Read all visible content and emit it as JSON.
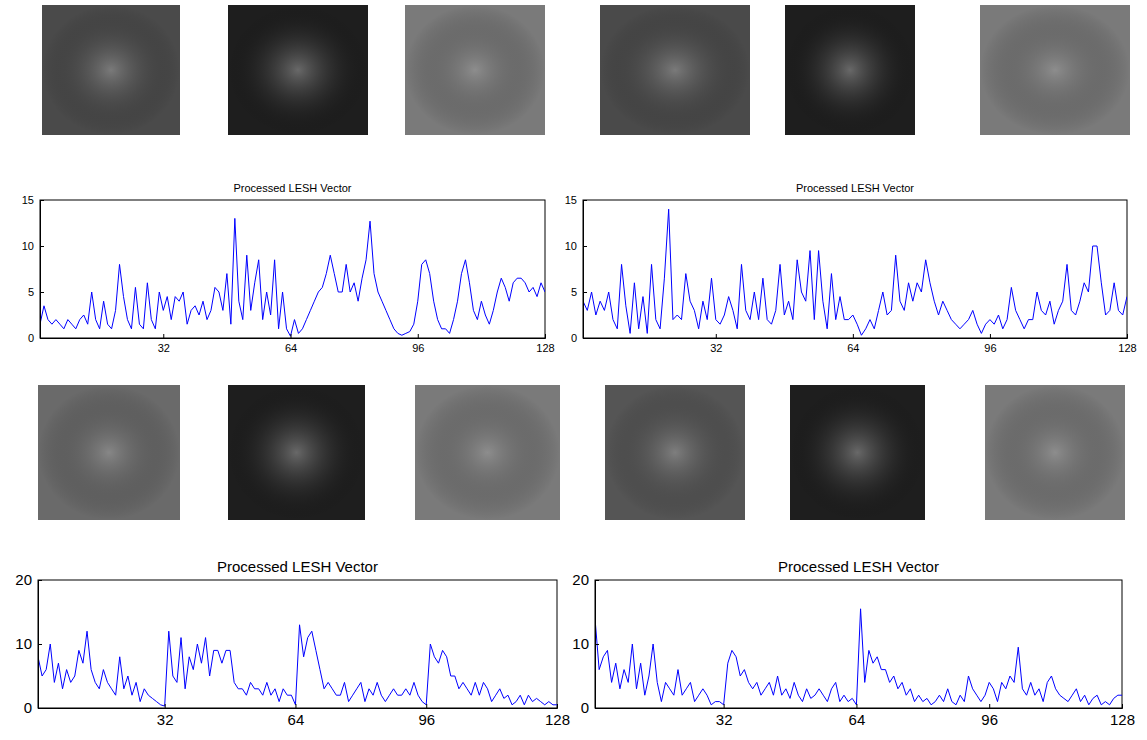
{
  "chart_data": [
    {
      "type": "line",
      "title": "Processed LESH Vector",
      "color": "#0000ff",
      "x": [
        1,
        2,
        3,
        4,
        5,
        6,
        7,
        8,
        9,
        10,
        11,
        12,
        13,
        14,
        15,
        16,
        17,
        18,
        19,
        20,
        21,
        22,
        23,
        24,
        25,
        26,
        27,
        28,
        29,
        30,
        31,
        32,
        33,
        34,
        35,
        36,
        37,
        38,
        39,
        40,
        41,
        42,
        43,
        44,
        45,
        46,
        47,
        48,
        49,
        50,
        51,
        52,
        53,
        54,
        55,
        56,
        57,
        58,
        59,
        60,
        61,
        62,
        63,
        64,
        65,
        66,
        67,
        68,
        69,
        70,
        71,
        72,
        73,
        74,
        75,
        76,
        77,
        78,
        79,
        80,
        81,
        82,
        83,
        84,
        85,
        86,
        87,
        88,
        89,
        90,
        91,
        92,
        93,
        94,
        95,
        96,
        97,
        98,
        99,
        100,
        101,
        102,
        103,
        104,
        105,
        106,
        107,
        108,
        109,
        110,
        111,
        112,
        113,
        114,
        115,
        116,
        117,
        118,
        119,
        120,
        121,
        122,
        123,
        124,
        125,
        126,
        127,
        128
      ],
      "values": [
        1.5,
        3.5,
        2,
        1.5,
        2,
        1.5,
        1,
        2,
        1.5,
        1,
        2,
        2.5,
        1.5,
        5,
        2,
        1,
        4,
        1.5,
        1,
        3,
        8,
        4.5,
        2,
        1,
        5.5,
        1.5,
        1,
        6,
        2,
        1,
        5,
        3,
        4.5,
        2,
        4.5,
        4,
        5,
        1.5,
        3,
        3.5,
        2.5,
        4,
        2,
        3,
        5.5,
        5,
        3,
        7,
        1.5,
        13,
        4,
        2,
        9,
        3,
        6,
        8.5,
        2,
        5,
        2.5,
        8.5,
        1,
        5,
        1,
        0.2,
        2,
        0.5,
        1,
        2,
        3,
        4,
        5,
        5.5,
        7,
        9,
        7,
        5,
        5,
        8,
        5,
        6,
        4,
        6.5,
        8.5,
        12.7,
        7,
        5,
        4,
        3,
        2,
        1,
        0.5,
        0.3,
        0.5,
        0.7,
        1.5,
        4,
        8,
        8.5,
        7,
        4,
        2,
        1,
        1,
        0.5,
        2,
        4,
        7,
        8.5,
        6,
        3,
        2,
        4,
        2.5,
        1.5,
        3,
        5,
        6.5,
        5.5,
        4,
        6,
        6.5,
        6.5,
        6,
        5,
        5.5,
        4.5,
        6,
        5
      ],
      "xlim": [
        1,
        128
      ],
      "xticks": [
        32,
        64,
        96,
        128
      ],
      "ylim": [
        0,
        15
      ],
      "yticks": [
        0,
        5,
        10,
        15
      ],
      "grid": false
    },
    {
      "type": "line",
      "title": "Processed LESH Vector",
      "color": "#0000ff",
      "x": [
        1,
        2,
        3,
        4,
        5,
        6,
        7,
        8,
        9,
        10,
        11,
        12,
        13,
        14,
        15,
        16,
        17,
        18,
        19,
        20,
        21,
        22,
        23,
        24,
        25,
        26,
        27,
        28,
        29,
        30,
        31,
        32,
        33,
        34,
        35,
        36,
        37,
        38,
        39,
        40,
        41,
        42,
        43,
        44,
        45,
        46,
        47,
        48,
        49,
        50,
        51,
        52,
        53,
        54,
        55,
        56,
        57,
        58,
        59,
        60,
        61,
        62,
        63,
        64,
        65,
        66,
        67,
        68,
        69,
        70,
        71,
        72,
        73,
        74,
        75,
        76,
        77,
        78,
        79,
        80,
        81,
        82,
        83,
        84,
        85,
        86,
        87,
        88,
        89,
        90,
        91,
        92,
        93,
        94,
        95,
        96,
        97,
        98,
        99,
        100,
        101,
        102,
        103,
        104,
        105,
        106,
        107,
        108,
        109,
        110,
        111,
        112,
        113,
        114,
        115,
        116,
        117,
        118,
        119,
        120,
        121,
        122,
        123,
        124,
        125,
        126,
        127,
        128
      ],
      "values": [
        4,
        3,
        5,
        2.5,
        4,
        3,
        5,
        2,
        1,
        8,
        3.5,
        0.5,
        6,
        1,
        4.5,
        0.5,
        8,
        2,
        1,
        6.5,
        14,
        2,
        2.5,
        2,
        7,
        4,
        3,
        1,
        4,
        2,
        6.5,
        2,
        1.5,
        2.5,
        4.5,
        3,
        1,
        8,
        3,
        2,
        5,
        2,
        6.5,
        2,
        1.5,
        3,
        8,
        2.5,
        4,
        2,
        8.5,
        5,
        4,
        9.5,
        2,
        9.5,
        4,
        1,
        7,
        2,
        4.5,
        2,
        2,
        2.5,
        1.5,
        0.3,
        1,
        2,
        1,
        3,
        5,
        2.5,
        3,
        9,
        4,
        3,
        6,
        4,
        6,
        5,
        8.5,
        6,
        4,
        2.5,
        4,
        3,
        2,
        1.5,
        1,
        1.5,
        2,
        3,
        1.5,
        0.5,
        1.5,
        2,
        1.5,
        2.5,
        1,
        2,
        5.5,
        3,
        2,
        1,
        2,
        2,
        5,
        3,
        2.5,
        4,
        1.5,
        3,
        4,
        8,
        3,
        2.5,
        4,
        6,
        5,
        10,
        10,
        6,
        2.5,
        3,
        6,
        3,
        2.5,
        4.5
      ],
      "xlim": [
        1,
        128
      ],
      "xticks": [
        32,
        64,
        96,
        128
      ],
      "ylim": [
        0,
        15
      ],
      "yticks": [
        0,
        5,
        10,
        15
      ],
      "grid": false
    },
    {
      "type": "line",
      "title": "Processed LESH Vector",
      "color": "#0000ff",
      "x": [
        1,
        2,
        3,
        4,
        5,
        6,
        7,
        8,
        9,
        10,
        11,
        12,
        13,
        14,
        15,
        16,
        17,
        18,
        19,
        20,
        21,
        22,
        23,
        24,
        25,
        26,
        27,
        28,
        29,
        30,
        31,
        32,
        33,
        34,
        35,
        36,
        37,
        38,
        39,
        40,
        41,
        42,
        43,
        44,
        45,
        46,
        47,
        48,
        49,
        50,
        51,
        52,
        53,
        54,
        55,
        56,
        57,
        58,
        59,
        60,
        61,
        62,
        63,
        64,
        65,
        66,
        67,
        68,
        69,
        70,
        71,
        72,
        73,
        74,
        75,
        76,
        77,
        78,
        79,
        80,
        81,
        82,
        83,
        84,
        85,
        86,
        87,
        88,
        89,
        90,
        91,
        92,
        93,
        94,
        95,
        96,
        97,
        98,
        99,
        100,
        101,
        102,
        103,
        104,
        105,
        106,
        107,
        108,
        109,
        110,
        111,
        112,
        113,
        114,
        115,
        116,
        117,
        118,
        119,
        120,
        121,
        122,
        123,
        124,
        125,
        126,
        127,
        128
      ],
      "values": [
        8,
        5,
        6,
        10,
        4,
        7,
        3,
        6,
        4,
        5,
        9,
        7,
        12,
        6,
        4,
        3,
        6,
        4,
        3,
        2,
        8,
        3,
        5,
        2,
        4,
        1,
        3,
        2,
        1.5,
        1,
        0.5,
        0.3,
        12,
        5,
        4,
        11,
        3,
        8,
        6,
        10,
        7,
        11,
        5,
        9,
        9,
        7,
        9,
        9,
        4,
        3,
        3,
        2,
        4,
        3,
        3,
        2,
        4,
        2,
        3,
        1,
        3,
        2,
        2,
        0.5,
        13,
        8,
        11,
        12,
        9,
        6,
        3,
        4,
        3,
        2,
        2,
        4,
        1,
        2,
        3,
        4,
        1,
        3,
        2,
        4,
        2,
        1,
        2,
        3,
        2,
        2,
        3,
        2,
        4,
        2,
        1,
        0.5,
        10,
        8,
        7,
        9,
        8,
        5,
        5,
        3,
        4,
        3,
        2,
        4,
        2,
        4,
        3,
        1,
        2,
        3,
        1.5,
        2,
        0.5,
        1,
        2,
        0.5,
        2,
        1,
        1.5,
        1,
        0.5,
        1,
        0.5,
        0.5
      ],
      "xlim": [
        1,
        128
      ],
      "xticks": [
        32,
        64,
        96,
        128
      ],
      "ylim": [
        0,
        20
      ],
      "yticks": [
        0,
        10,
        20
      ],
      "grid": false
    },
    {
      "type": "line",
      "title": "Processed LESH Vector",
      "color": "#0000ff",
      "x": [
        1,
        2,
        3,
        4,
        5,
        6,
        7,
        8,
        9,
        10,
        11,
        12,
        13,
        14,
        15,
        16,
        17,
        18,
        19,
        20,
        21,
        22,
        23,
        24,
        25,
        26,
        27,
        28,
        29,
        30,
        31,
        32,
        33,
        34,
        35,
        36,
        37,
        38,
        39,
        40,
        41,
        42,
        43,
        44,
        45,
        46,
        47,
        48,
        49,
        50,
        51,
        52,
        53,
        54,
        55,
        56,
        57,
        58,
        59,
        60,
        61,
        62,
        63,
        64,
        65,
        66,
        67,
        68,
        69,
        70,
        71,
        72,
        73,
        74,
        75,
        76,
        77,
        78,
        79,
        80,
        81,
        82,
        83,
        84,
        85,
        86,
        87,
        88,
        89,
        90,
        91,
        92,
        93,
        94,
        95,
        96,
        97,
        98,
        99,
        100,
        101,
        102,
        103,
        104,
        105,
        106,
        107,
        108,
        109,
        110,
        111,
        112,
        113,
        114,
        115,
        116,
        117,
        118,
        119,
        120,
        121,
        122,
        123,
        124,
        125,
        126,
        127,
        128
      ],
      "values": [
        14,
        6,
        8,
        9,
        4,
        7,
        3,
        6,
        4,
        10,
        3,
        7,
        2,
        5,
        10,
        4,
        1,
        4,
        3,
        2,
        6,
        2,
        3,
        4,
        1,
        2,
        3,
        2,
        0.5,
        1,
        1,
        0.5,
        7,
        9,
        8,
        5,
        6,
        4,
        3,
        4,
        2,
        3,
        4,
        2,
        5,
        2,
        3,
        1.5,
        4,
        2,
        1,
        3,
        1.5,
        2,
        3,
        2,
        1,
        3,
        4,
        1,
        2,
        1,
        1.5,
        0.5,
        15.5,
        4,
        9,
        7,
        8,
        6,
        6,
        4,
        5,
        3,
        4,
        2,
        3,
        1,
        2,
        1,
        1.5,
        0.5,
        1,
        2,
        1,
        3,
        1,
        0.5,
        2,
        1,
        5,
        3,
        2,
        1,
        2,
        4,
        3,
        1,
        4,
        3,
        5,
        4,
        9.5,
        3,
        2,
        4,
        2,
        3,
        1,
        4,
        5,
        3,
        2,
        1.5,
        1,
        2,
        3,
        1,
        2,
        0.5,
        1.5,
        2,
        0.5,
        1,
        0.5,
        1.5,
        2,
        2
      ],
      "xlim": [
        1,
        128
      ],
      "xticks": [
        32,
        64,
        96,
        128
      ],
      "ylim": [
        0,
        20
      ],
      "yticks": [
        0,
        10,
        20
      ],
      "grid": false
    }
  ]
}
